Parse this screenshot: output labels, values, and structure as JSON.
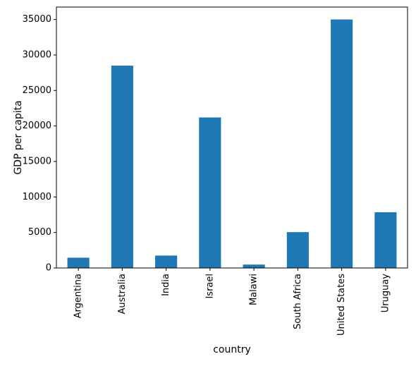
{
  "chart_data": {
    "type": "bar",
    "title": "",
    "xlabel": "country",
    "ylabel": "GDP per capita",
    "categories": [
      "Argentina",
      "Australia",
      "India",
      "Israel",
      "Malawi",
      "South Africa",
      "United States",
      "Uruguay"
    ],
    "values": [
      1450,
      28500,
      1750,
      21200,
      480,
      5050,
      35000,
      7850
    ],
    "ylim": [
      0,
      36750
    ],
    "yticks": [
      0,
      5000,
      10000,
      15000,
      20000,
      25000,
      30000,
      35000
    ],
    "bar_color": "#1f77b4",
    "grid": false,
    "legend": "none"
  }
}
